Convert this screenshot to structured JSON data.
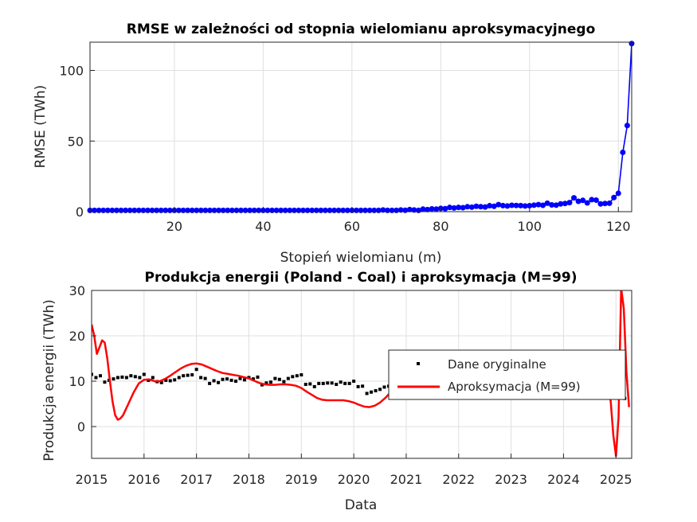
{
  "chart_data": [
    {
      "type": "line",
      "title": "RMSE w zależności od stopnia wielomianu aproksymacyjnego",
      "xlabel": "Stopień wielomianu (m)",
      "ylabel": "RMSE (TWh)",
      "xlim": [
        1,
        123
      ],
      "ylim": [
        0,
        120
      ],
      "xticks": [
        20,
        40,
        60,
        80,
        100,
        120
      ],
      "yticks": [
        0,
        50,
        100
      ],
      "grid": true,
      "color": "#0000ff",
      "series": [
        {
          "name": "",
          "x": [
            1,
            2,
            3,
            4,
            5,
            6,
            7,
            8,
            9,
            10,
            11,
            12,
            13,
            14,
            15,
            16,
            17,
            18,
            19,
            20,
            21,
            22,
            23,
            24,
            25,
            26,
            27,
            28,
            29,
            30,
            31,
            32,
            33,
            34,
            35,
            36,
            37,
            38,
            39,
            40,
            41,
            42,
            43,
            44,
            45,
            46,
            47,
            48,
            49,
            50,
            51,
            52,
            53,
            54,
            55,
            56,
            57,
            58,
            59,
            60,
            61,
            62,
            63,
            64,
            65,
            66,
            67,
            68,
            69,
            70,
            71,
            72,
            73,
            74,
            75,
            76,
            77,
            78,
            79,
            80,
            81,
            82,
            83,
            84,
            85,
            86,
            87,
            88,
            89,
            90,
            91,
            92,
            93,
            94,
            95,
            96,
            97,
            98,
            99,
            100,
            101,
            102,
            103,
            104,
            105,
            106,
            107,
            108,
            109,
            110,
            111,
            112,
            113,
            114,
            115,
            116,
            117,
            118,
            119,
            120,
            121,
            122,
            123
          ],
          "y": [
            0.9,
            0.9,
            0.9,
            0.9,
            0.9,
            0.9,
            0.9,
            0.9,
            0.9,
            0.9,
            0.9,
            0.9,
            0.9,
            0.9,
            0.9,
            0.9,
            0.9,
            0.9,
            0.9,
            0.9,
            0.9,
            0.9,
            0.9,
            0.9,
            0.9,
            0.9,
            0.9,
            0.9,
            0.9,
            0.9,
            0.9,
            0.9,
            0.9,
            0.9,
            0.9,
            0.9,
            0.9,
            0.9,
            0.9,
            0.9,
            0.9,
            0.9,
            0.9,
            0.9,
            0.9,
            0.9,
            0.9,
            0.9,
            0.9,
            0.9,
            0.9,
            0.9,
            0.9,
            0.9,
            0.9,
            0.9,
            0.9,
            0.9,
            0.9,
            0.9,
            0.9,
            0.9,
            0.9,
            0.9,
            0.9,
            0.9,
            1.2,
            0.9,
            0.9,
            0.9,
            1.2,
            1.0,
            1.5,
            1.2,
            0.9,
            1.8,
            1.5,
            2.0,
            1.8,
            2.3,
            2.1,
            3.0,
            2.6,
            3.0,
            2.8,
            3.5,
            3.2,
            3.8,
            3.5,
            3.3,
            4.2,
            3.8,
            5.0,
            4.3,
            4.0,
            4.5,
            4.4,
            4.3,
            4.0,
            4.2,
            4.6,
            5.0,
            4.5,
            6.0,
            4.8,
            4.6,
            5.5,
            5.8,
            6.4,
            9.8,
            7.3,
            8.0,
            6.2,
            8.5,
            8.2,
            5.5,
            5.8,
            6.0,
            10.0,
            13.0,
            42.0,
            61.0,
            119.0
          ]
        }
      ]
    },
    {
      "type": "line",
      "title": "Produkcja energii (Poland - Coal) i aproksymacja (M=99)",
      "xlabel": "Data",
      "ylabel": "Produkcja energii (TWh)",
      "xlim": [
        "2015",
        "2025.3"
      ],
      "ylim": [
        -7,
        30
      ],
      "xticks": [
        "2015",
        "2016",
        "2017",
        "2018",
        "2019",
        "2020",
        "2021",
        "2022",
        "2023",
        "2024",
        "2025"
      ],
      "yticks": [
        0,
        10,
        20,
        30
      ],
      "grid": true,
      "legend": "upper-right",
      "series": [
        {
          "name": "Dane oryginalne",
          "style": "markers",
          "color": "#000000",
          "x": [
            2015.0,
            2015.083,
            2015.167,
            2015.25,
            2015.333,
            2015.417,
            2015.5,
            2015.583,
            2015.667,
            2015.75,
            2015.833,
            2015.917,
            2016.0,
            2016.083,
            2016.167,
            2016.25,
            2016.333,
            2016.417,
            2016.5,
            2016.583,
            2016.667,
            2016.75,
            2016.833,
            2016.917,
            2017.0,
            2017.083,
            2017.167,
            2017.25,
            2017.333,
            2017.417,
            2017.5,
            2017.583,
            2017.667,
            2017.75,
            2017.833,
            2017.917,
            2018.0,
            2018.083,
            2018.167,
            2018.25,
            2018.333,
            2018.417,
            2018.5,
            2018.583,
            2018.667,
            2018.75,
            2018.833,
            2018.917,
            2019.0,
            2019.083,
            2019.167,
            2019.25,
            2019.333,
            2019.417,
            2019.5,
            2019.583,
            2019.667,
            2019.75,
            2019.833,
            2019.917,
            2020.0,
            2020.083,
            2020.167,
            2020.25,
            2020.333,
            2020.417,
            2020.5,
            2020.583,
            2020.667,
            2024.667,
            2024.75,
            2024.833,
            2024.917,
            2025.0,
            2025.083,
            2025.167
          ],
          "y": [
            11.5,
            10.8,
            11.2,
            9.8,
            10.2,
            10.5,
            10.8,
            10.9,
            10.8,
            11.2,
            11.0,
            10.8,
            11.5,
            10.2,
            10.8,
            9.9,
            9.7,
            10.2,
            10.1,
            10.3,
            10.8,
            11.2,
            11.3,
            11.4,
            12.6,
            10.8,
            10.6,
            9.5,
            10.1,
            9.7,
            10.4,
            10.5,
            10.2,
            10.0,
            10.6,
            10.3,
            10.8,
            10.5,
            10.9,
            9.2,
            9.6,
            9.8,
            10.6,
            10.4,
            9.9,
            10.6,
            11.0,
            11.2,
            11.4,
            9.3,
            9.4,
            8.8,
            9.5,
            9.5,
            9.6,
            9.6,
            9.3,
            9.8,
            9.5,
            9.5,
            10.0,
            8.8,
            8.9,
            7.3,
            7.6,
            7.9,
            8.2,
            8.7,
            8.9,
            6.3,
            7.4,
            8.6,
            8.9,
            9.0,
            7.4,
            6.2
          ]
        },
        {
          "name": "Aproksymacja (M=99)",
          "style": "line",
          "color": "#ff0000",
          "x": [
            2015.0,
            2015.05,
            2015.1,
            2015.15,
            2015.2,
            2015.25,
            2015.3,
            2015.35,
            2015.4,
            2015.45,
            2015.5,
            2015.55,
            2015.6,
            2015.7,
            2015.8,
            2015.9,
            2016.0,
            2016.1,
            2016.2,
            2016.3,
            2016.4,
            2016.5,
            2016.6,
            2016.7,
            2016.8,
            2016.9,
            2017.0,
            2017.1,
            2017.2,
            2017.3,
            2017.4,
            2017.5,
            2017.6,
            2017.7,
            2017.8,
            2017.9,
            2018.0,
            2018.1,
            2018.2,
            2018.3,
            2018.4,
            2018.5,
            2018.6,
            2018.7,
            2018.8,
            2018.9,
            2019.0,
            2019.1,
            2019.2,
            2019.3,
            2019.4,
            2019.5,
            2019.6,
            2019.7,
            2019.8,
            2019.9,
            2020.0,
            2020.1,
            2020.2,
            2020.3,
            2020.4,
            2020.5,
            2020.6,
            2020.7,
            2020.8,
            2024.6,
            2024.67,
            2024.72,
            2024.78,
            2024.85,
            2024.9,
            2024.95,
            2025.0,
            2025.05,
            2025.1,
            2025.15,
            2025.2,
            2025.25
          ],
          "y": [
            22.5,
            20.0,
            16.0,
            17.5,
            19.0,
            18.5,
            15.0,
            10.0,
            5.5,
            2.5,
            1.5,
            1.8,
            2.5,
            5.0,
            7.5,
            9.5,
            10.3,
            10.4,
            10.0,
            10.0,
            10.5,
            11.2,
            12.0,
            12.8,
            13.4,
            13.8,
            13.9,
            13.7,
            13.2,
            12.7,
            12.2,
            11.8,
            11.6,
            11.4,
            11.2,
            10.9,
            10.6,
            10.1,
            9.6,
            9.3,
            9.2,
            9.2,
            9.3,
            9.3,
            9.2,
            9.0,
            8.5,
            7.7,
            7.0,
            6.3,
            5.9,
            5.8,
            5.8,
            5.8,
            5.8,
            5.6,
            5.3,
            4.8,
            4.4,
            4.3,
            4.6,
            5.3,
            6.3,
            7.5,
            8.8,
            9.5,
            10.5,
            11.5,
            11.3,
            9.5,
            5.5,
            -2.0,
            -6.5,
            2.0,
            30.5,
            26.0,
            12.0,
            4.3
          ]
        }
      ]
    }
  ]
}
